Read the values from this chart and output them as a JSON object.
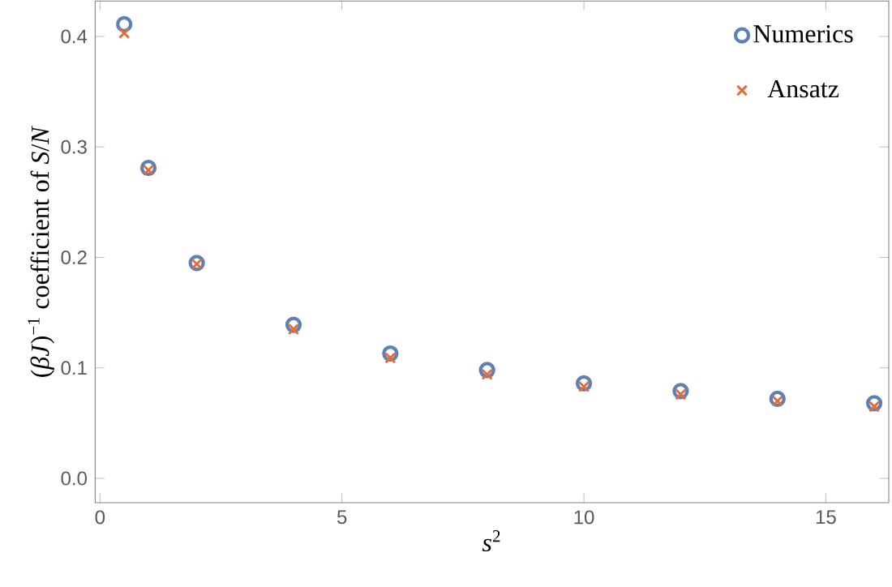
{
  "chart_data": {
    "type": "scatter",
    "xlabel": "*s*$^{2}$",
    "ylabel": "(*βJ*)$^{−1}$ coefficient of *S*/*N*",
    "x": [
      0.5,
      1,
      2,
      4,
      6,
      8,
      10,
      12,
      14,
      16
    ],
    "series": [
      {
        "name": "Numerics",
        "color": "#5e81b5",
        "marker": "circle",
        "values": [
          0.411,
          0.281,
          0.195,
          0.139,
          0.113,
          0.098,
          0.086,
          0.079,
          0.072,
          0.068
        ]
      },
      {
        "name": "Ansatz",
        "color": "#e56b3a",
        "marker": "cross",
        "values": [
          0.403,
          0.279,
          0.194,
          0.135,
          0.109,
          0.094,
          0.083,
          0.076,
          0.07,
          0.065
        ]
      }
    ],
    "xlim": [
      -0.1,
      16.3
    ],
    "ylim": [
      -0.022,
      0.432
    ],
    "xticks": [
      0,
      5,
      10,
      15
    ],
    "yticks": [
      {
        "value": 0,
        "label": "0.0"
      },
      {
        "value": 0.1,
        "label": "0.1"
      },
      {
        "value": 0.2,
        "label": "0.2"
      },
      {
        "value": 0.3,
        "label": "0.3"
      },
      {
        "value": 0.4,
        "label": "0.4"
      }
    ],
    "legend": "top right",
    "grid": false
  }
}
